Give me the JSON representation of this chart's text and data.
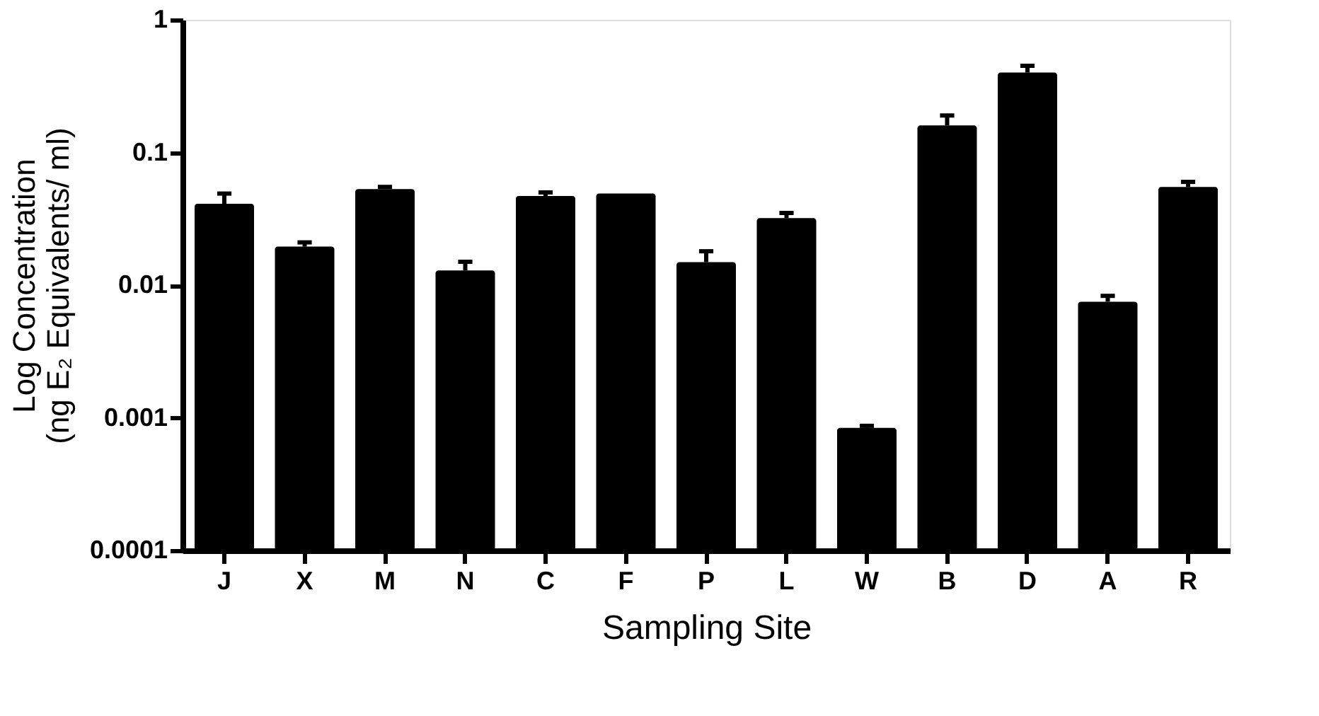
{
  "chart_data": {
    "type": "bar",
    "xlabel": "Sampling Site",
    "ylabel": "Log Concentration\n(ng E₂ Equivalents/ ml)",
    "categories": [
      "J",
      "X",
      "M",
      "N",
      "C",
      "F",
      "P",
      "L",
      "W",
      "B",
      "D",
      "A",
      "R"
    ],
    "values": [
      0.041,
      0.0195,
      0.053,
      0.0129,
      0.047,
      0.049,
      0.0149,
      0.032,
      0.00084,
      0.16,
      0.4,
      0.0075,
      0.055
    ],
    "errors": [
      [
        0.041,
        0.049
      ],
      [
        0.0195,
        0.021
      ],
      [
        0.053,
        0.055
      ],
      [
        0.0129,
        0.015
      ],
      [
        0.047,
        0.05
      ],
      null,
      [
        0.0149,
        0.018
      ],
      [
        0.032,
        0.035
      ],
      [
        0.00084,
        0.00087
      ],
      [
        0.16,
        0.19
      ],
      [
        0.4,
        0.45
      ],
      [
        0.0075,
        0.0083
      ],
      [
        0.055,
        0.06
      ]
    ],
    "color": "#000000",
    "log": true,
    "ylim": [
      0.0001,
      1
    ],
    "yticks": [
      {
        "value": 0.0001,
        "label": "0.0001"
      },
      {
        "value": 0.001,
        "label": "0.001"
      },
      {
        "value": 0.01,
        "label": "0.01"
      },
      {
        "value": 0.1,
        "label": "0.1"
      },
      {
        "value": 1,
        "label": "1"
      }
    ],
    "grid": false
  }
}
